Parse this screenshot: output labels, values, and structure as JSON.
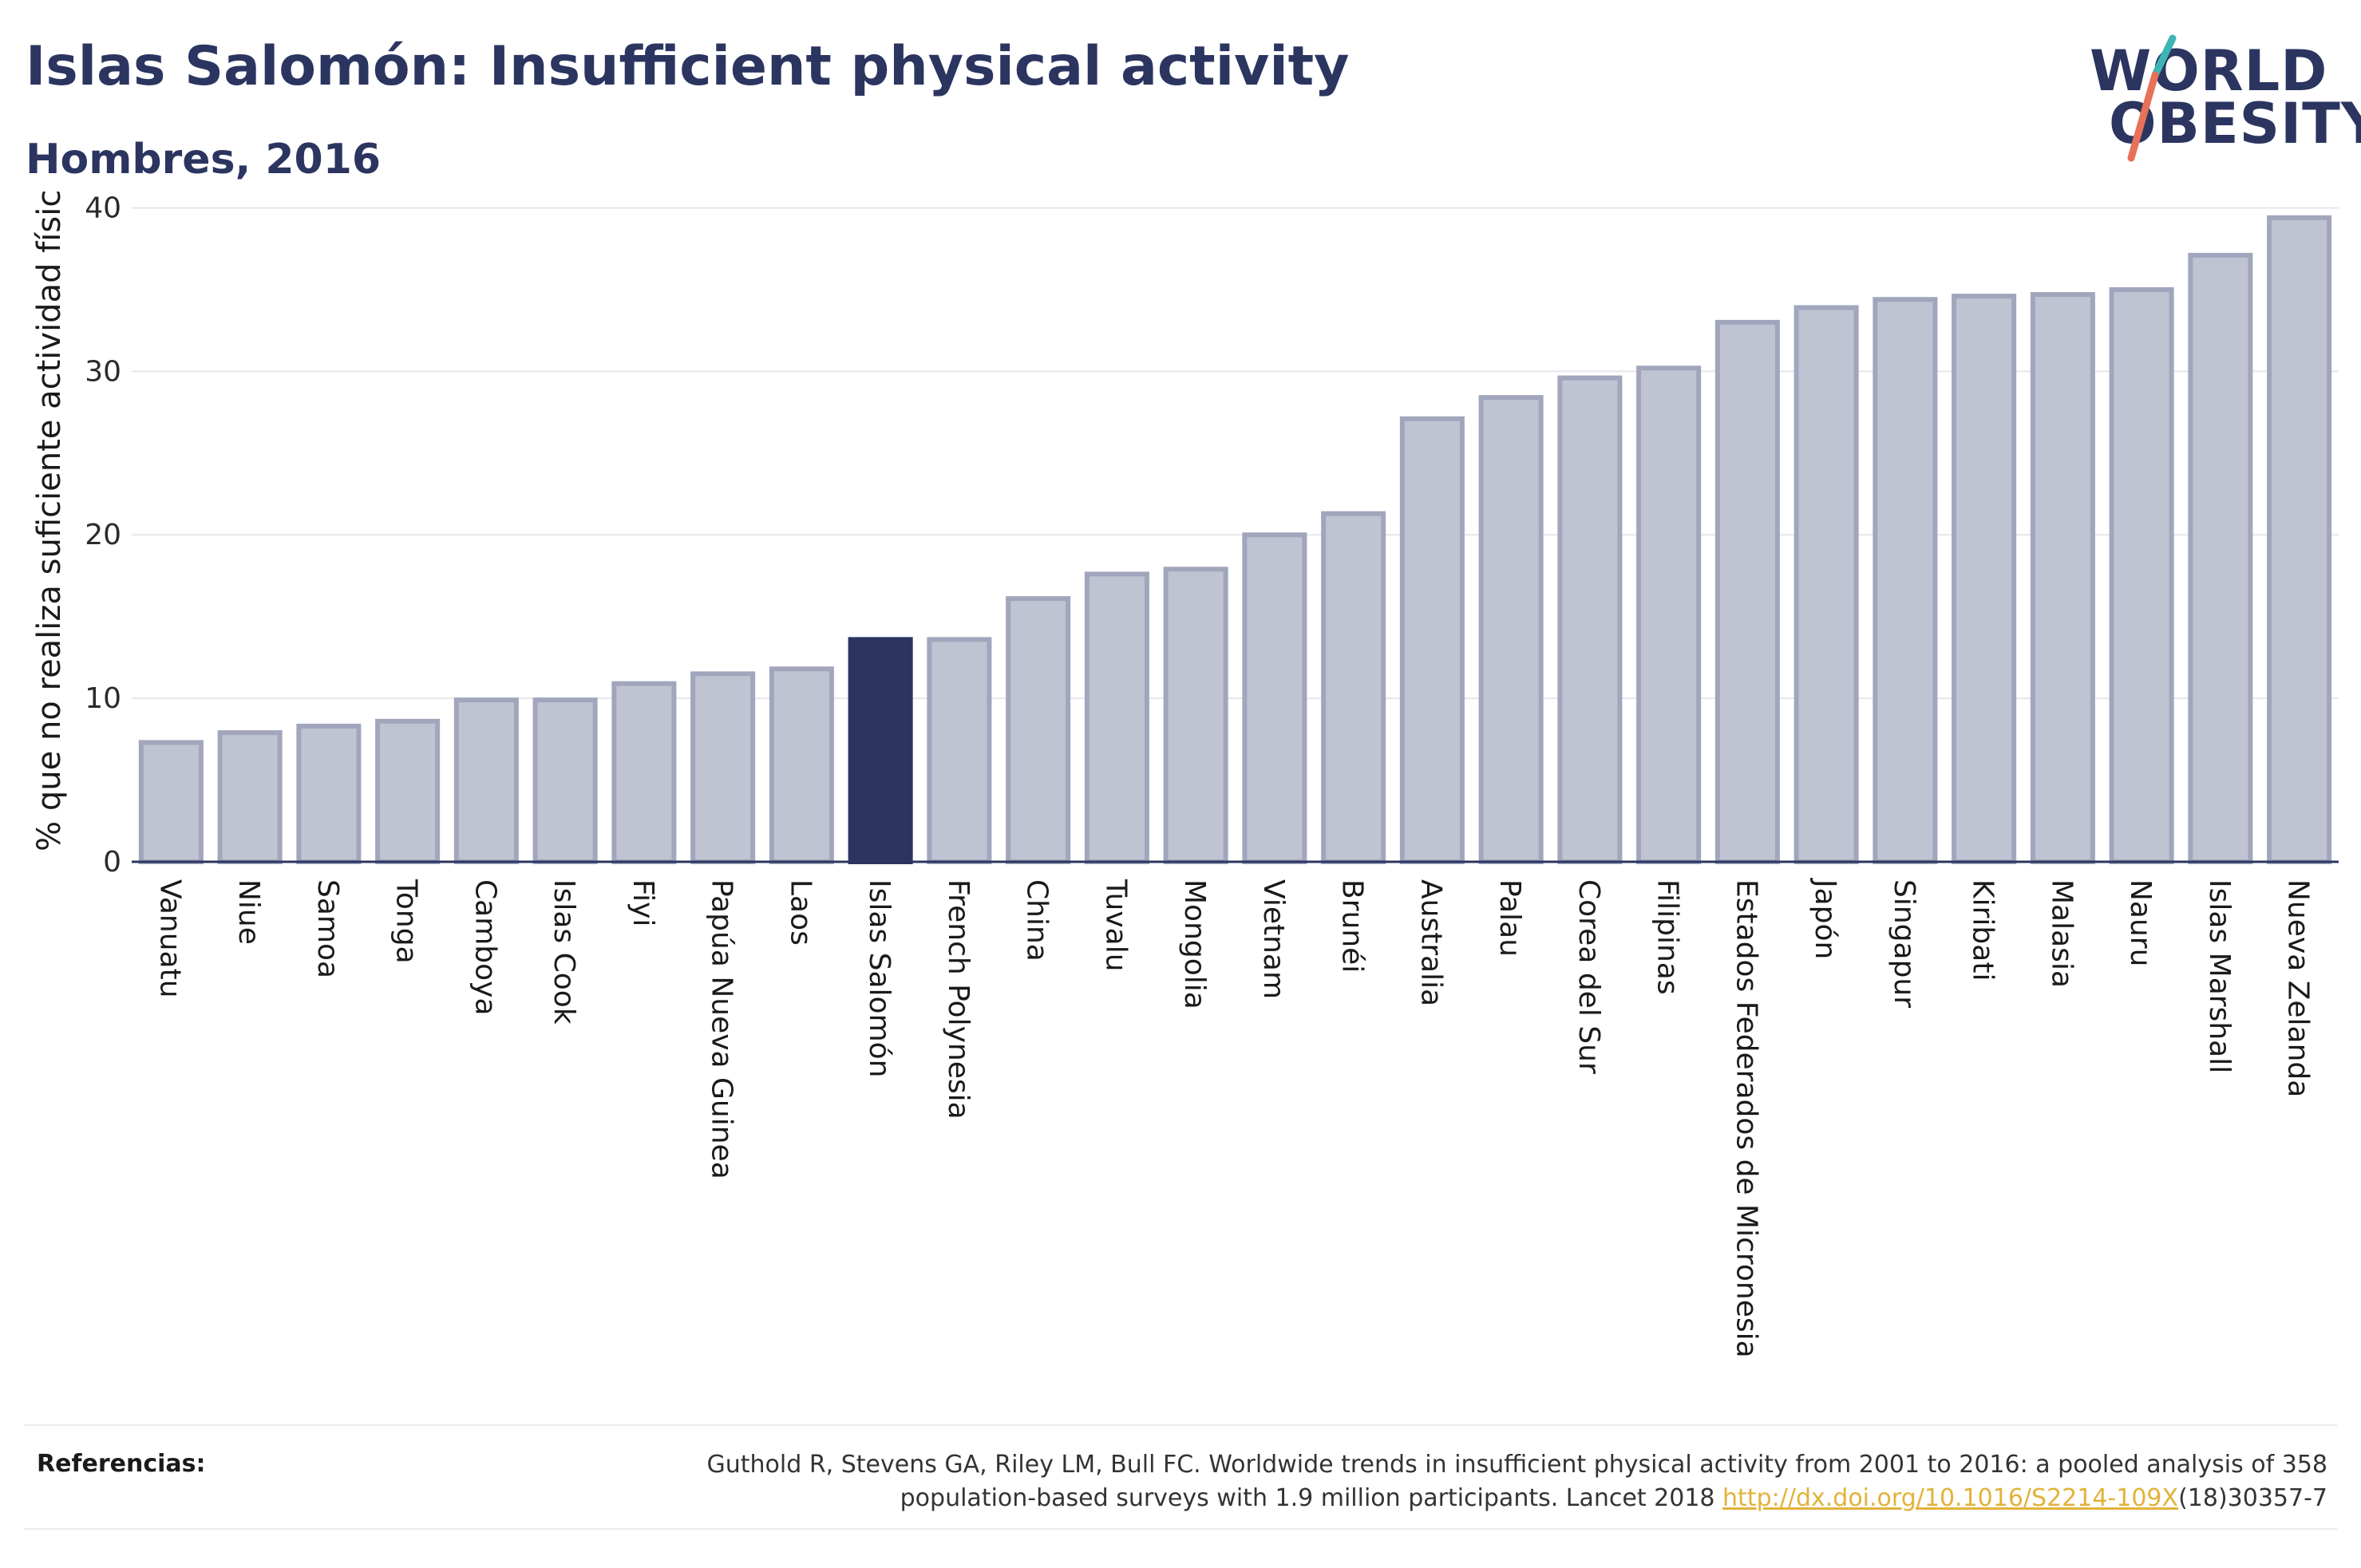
{
  "header": {
    "title": "Islas Salomón: Insufficient physical activity",
    "subtitle": "Hombres, 2016"
  },
  "logo": {
    "line1": "WORLD",
    "line2": "OBESITY",
    "colors": {
      "text": "#2b3560",
      "slash_top": "#3cb5b5",
      "slash_bottom": "#e8715a"
    }
  },
  "chart_data": {
    "type": "bar",
    "title": "",
    "xlabel": "",
    "ylabel": "% que no realiza suficiente actividad física",
    "ylim": [
      0,
      41
    ],
    "yticks": [
      0,
      10,
      20,
      30,
      40
    ],
    "grid": true,
    "highlight": "Islas Salomón",
    "colors": {
      "bar": "#c0c3d1",
      "bar_edge": "#a1a6bd",
      "highlight": "#2b3560",
      "grid": "#e6e6ec",
      "axis": "#2b3560"
    },
    "categories": [
      "Vanuatu",
      "Niue",
      "Samoa",
      "Tonga",
      "Camboya",
      "Islas Cook",
      "Fiyi",
      "Papúa Nueva Guinea",
      "Laos",
      "Islas Salomón",
      "French Polynesia",
      "China",
      "Tuvalu",
      "Mongolia",
      "Vietnam",
      "Brunéi",
      "Australia",
      "Palau",
      "Corea del Sur",
      "Filipinas",
      "Estados Federados de Micronesia",
      "Japón",
      "Singapur",
      "Kiribati",
      "Malasia",
      "Nauru",
      "Islas Marshall",
      "Nueva Zelanda"
    ],
    "values": [
      7.3,
      7.9,
      8.3,
      8.6,
      9.9,
      9.9,
      10.9,
      11.5,
      11.8,
      13.6,
      13.6,
      16.1,
      17.6,
      17.9,
      20.0,
      21.3,
      27.1,
      28.4,
      29.6,
      30.2,
      33.0,
      33.9,
      34.4,
      34.6,
      34.7,
      35.0,
      37.1,
      39.4
    ]
  },
  "references": {
    "label": "Referencias:",
    "line1": "Guthold R, Stevens GA, Riley LM, Bull FC. Worldwide trends in insufficient physical activity from 2001 to 2016: a pooled analysis of 358",
    "line2_pre": "population-based surveys with 1.9 million participants. Lancet 2018 ",
    "link": "http://dx.doi.org/10.1016/S2214-109X",
    "line2_post": "(18)30357-7"
  }
}
